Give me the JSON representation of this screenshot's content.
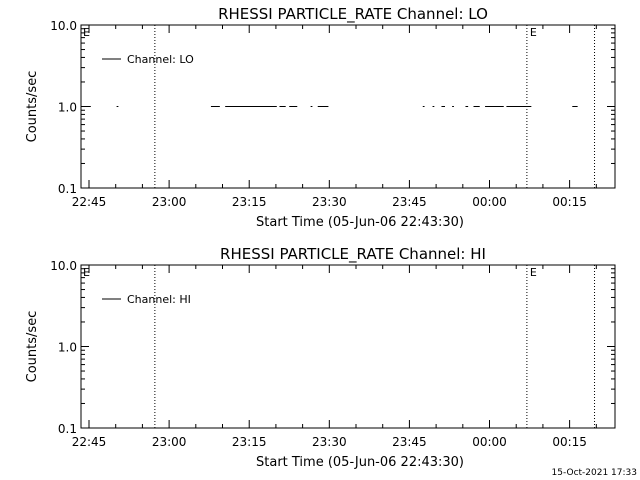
{
  "chart_data": [
    {
      "type": "line",
      "title": "RHESSI PARTICLE_RATE Channel: LO",
      "xlabel": "Start Time (05-Jun-06 22:43:30)",
      "ylabel": "Counts/sec",
      "y_scale": "log",
      "ylim": [
        0.1,
        10.0
      ],
      "y_ticks": [
        "0.1",
        "1.0",
        "10.0"
      ],
      "x_ticks": [
        "22:45",
        "23:00",
        "23:15",
        "23:30",
        "23:45",
        "00:00",
        "00:15"
      ],
      "xlim": [
        "22:43:30",
        "00:23:30"
      ],
      "grid": false,
      "legend_position": "top-left",
      "series": [
        {
          "name": "Channel: LO",
          "segments": [
            [
              "22:45:00",
              "22:45:20"
            ],
            [
              "22:50:10",
              "22:50:30"
            ],
            [
              "23:07:50",
              "23:09:30"
            ],
            [
              "23:10:30",
              "23:20:10"
            ],
            [
              "23:20:40",
              "23:21:50"
            ],
            [
              "23:22:30",
              "23:24:00"
            ],
            [
              "23:26:30",
              "23:26:50"
            ],
            [
              "23:27:50",
              "23:29:50"
            ],
            [
              "23:47:30",
              "23:47:50"
            ],
            [
              "23:49:20",
              "23:49:40"
            ],
            [
              "23:51:00",
              "23:51:40"
            ],
            [
              "23:53:00",
              "23:53:20"
            ],
            [
              "23:55:30",
              "23:56:00"
            ],
            [
              "23:57:00",
              "23:58:10"
            ],
            [
              "23:59:10",
              "00:02:40"
            ],
            [
              "00:03:10",
              "00:07:50"
            ],
            [
              "00:15:30",
              "00:16:30"
            ]
          ],
          "value": 1.0
        }
      ],
      "vlines": [
        {
          "time": "22:57:20",
          "label": ""
        },
        {
          "time": "00:07:00",
          "label": "E"
        },
        {
          "time": "00:19:40",
          "label": ""
        }
      ],
      "left_marker": "E"
    },
    {
      "type": "line",
      "title": "RHESSI PARTICLE_RATE Channel: HI",
      "xlabel": "Start Time (05-Jun-06 22:43:30)",
      "ylabel": "Counts/sec",
      "y_scale": "log",
      "ylim": [
        0.1,
        10.0
      ],
      "y_ticks": [
        "0.1",
        "1.0",
        "10.0"
      ],
      "x_ticks": [
        "22:45",
        "23:00",
        "23:15",
        "23:30",
        "23:45",
        "00:00",
        "00:15"
      ],
      "xlim": [
        "22:43:30",
        "00:23:30"
      ],
      "grid": false,
      "legend_position": "top-left",
      "series": [
        {
          "name": "Channel: HI",
          "segments": [],
          "value": 1.0
        }
      ],
      "vlines": [
        {
          "time": "22:57:20",
          "label": ""
        },
        {
          "time": "00:07:00",
          "label": "E"
        },
        {
          "time": "00:19:40",
          "label": ""
        }
      ],
      "left_marker": "E"
    }
  ],
  "footer": {
    "timestamp": "15-Oct-2021 17:33"
  }
}
